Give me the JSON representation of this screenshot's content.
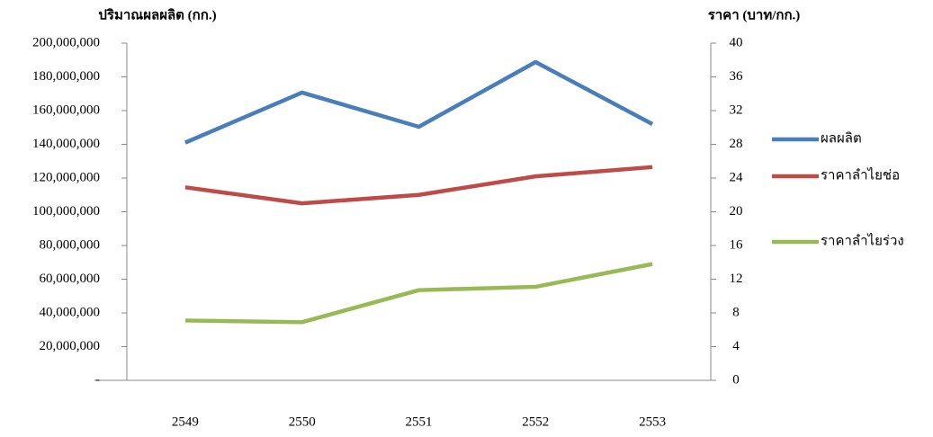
{
  "chart_data": {
    "type": "line",
    "y_title": "ปริมาณผลผลิต (กก.)",
    "y2_title": "ราคา (บาท/กก.)",
    "categories": [
      "2549",
      "2550",
      "2551",
      "2552",
      "2553"
    ],
    "series": [
      {
        "name": "ผลผลิต",
        "color": "#4a7ebb",
        "values": [
          141000000,
          170700000,
          150400000,
          188800000,
          152000000
        ]
      },
      {
        "name": "ราคาลำไยช่อ",
        "color": "#be4b48",
        "axis": "y2",
        "values": [
          22.9,
          21.0,
          22.0,
          24.2,
          25.3
        ]
      },
      {
        "name": "ราคาลำไยร่วง",
        "color": "#98b954",
        "axis": "y2",
        "values": [
          7.1,
          6.9,
          10.7,
          11.1,
          13.8
        ]
      }
    ],
    "ylim": [
      0,
      200000000
    ],
    "yticks": [
      {
        "value": 0,
        "label": "-"
      },
      {
        "value": 20000000,
        "label": "20,000,000"
      },
      {
        "value": 40000000,
        "label": "40,000,000"
      },
      {
        "value": 60000000,
        "label": "60,000,000"
      },
      {
        "value": 80000000,
        "label": "80,000,000"
      },
      {
        "value": 100000000,
        "label": "100,000,000"
      },
      {
        "value": 120000000,
        "label": "120,000,000"
      },
      {
        "value": 140000000,
        "label": "140,000,000"
      },
      {
        "value": 160000000,
        "label": "160,000,000"
      },
      {
        "value": 180000000,
        "label": "180,000,000"
      },
      {
        "value": 200000000,
        "label": "200,000,000"
      }
    ],
    "y2lim": [
      0,
      40
    ],
    "y2ticks": [
      0,
      4,
      8,
      12,
      16,
      20,
      24,
      28,
      32,
      36,
      40
    ],
    "grid": false,
    "legend": "right"
  }
}
